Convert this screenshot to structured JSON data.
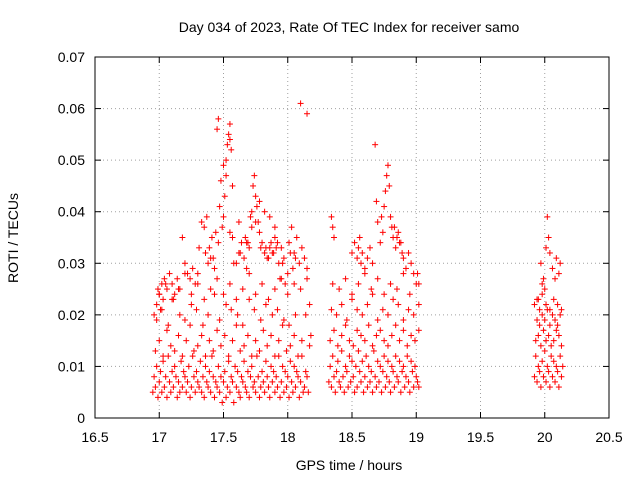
{
  "chart_data": {
    "type": "scatter",
    "title": "Day 034 of 2023, Rate Of TEC Index for receiver samo",
    "xlabel": "GPS time / hours",
    "ylabel": "ROTI / TECUs",
    "xlim": [
      16.5,
      20.5
    ],
    "ylim": [
      0,
      0.07
    ],
    "x_ticks": [
      "16.5",
      "17",
      "17.5",
      "18",
      "18.5",
      "19",
      "19.5",
      "20",
      "20.5"
    ],
    "y_ticks": [
      "0",
      "0.01",
      "0.02",
      "0.03",
      "0.04",
      "0.05",
      "0.06",
      "0.07"
    ],
    "grid": true,
    "marker": "+",
    "color": "#ff0000",
    "series": [
      {
        "x": [
          16.95,
          16.96,
          16.97,
          16.98,
          16.99,
          17.0,
          17.01,
          17.02,
          17.03,
          17.04,
          17.05,
          17.06,
          17.07,
          17.08,
          17.09,
          17.1,
          17.11,
          17.12,
          17.13,
          17.14,
          17.15,
          17.16,
          17.17,
          17.18,
          17.19,
          17.2,
          17.21,
          17.22,
          17.23,
          17.24,
          17.25,
          17.26,
          17.27,
          17.28,
          17.29,
          17.3,
          17.31,
          17.32,
          17.33,
          17.34,
          17.35,
          17.36,
          17.37,
          17.38,
          17.39,
          17.4,
          17.41,
          17.42,
          17.43,
          17.44,
          17.45,
          17.46,
          17.47,
          17.48,
          17.49,
          17.5,
          17.51,
          17.52,
          17.53,
          17.54,
          17.55,
          17.56,
          17.57,
          17.58,
          17.59,
          17.6,
          17.61,
          17.62,
          17.63,
          17.64,
          17.65,
          17.66,
          17.67,
          17.68,
          17.69,
          17.7,
          17.71,
          17.72,
          17.73,
          17.74,
          17.75,
          17.76,
          17.77,
          17.78,
          17.79,
          17.8,
          17.81,
          17.82,
          17.83,
          17.84,
          17.85,
          17.86,
          17.87,
          17.88,
          17.89,
          17.9,
          17.91,
          17.92,
          17.93,
          17.94,
          17.95,
          17.96,
          17.97,
          17.98,
          17.99,
          18.0,
          18.01,
          18.02,
          18.03,
          18.04,
          18.05,
          18.06,
          18.07,
          18.08,
          18.09,
          18.1,
          18.11,
          18.12,
          18.13,
          18.14,
          18.15,
          18.16,
          18.17,
          18.18,
          16.97,
          17.0,
          17.03,
          17.06,
          17.09,
          17.12,
          17.15,
          17.18,
          17.21,
          17.24,
          17.27,
          17.3,
          17.33,
          17.36,
          17.39,
          17.42,
          17.45,
          17.48,
          17.51,
          17.54,
          17.57,
          17.6,
          17.63,
          17.66,
          17.69,
          17.72,
          17.75,
          17.78,
          17.81,
          17.84,
          17.87,
          17.9,
          17.93,
          17.96,
          17.99,
          18.02,
          18.05,
          18.08,
          18.11,
          18.14,
          18.17,
          16.98,
          17.02,
          17.07,
          17.11,
          17.16,
          17.2,
          17.25,
          17.29,
          17.34,
          17.38,
          17.43,
          17.47,
          17.52,
          17.56,
          17.61,
          17.65,
          17.7,
          17.74,
          17.79,
          17.83,
          17.88,
          17.92,
          17.97,
          18.01,
          18.06,
          18.1,
          18.15,
          17.0,
          17.05,
          17.1,
          17.15,
          17.2,
          17.25,
          17.3,
          17.35,
          17.4,
          17.45,
          17.5,
          17.55,
          17.6,
          17.65,
          17.7,
          17.75,
          17.8,
          17.85,
          17.9,
          17.95,
          18.0,
          18.05,
          18.1,
          18.15,
          17.55,
          17.54,
          17.53,
          17.52,
          17.51,
          17.5,
          17.49,
          17.48,
          17.47,
          17.46,
          17.45,
          17.55,
          17.56,
          17.57,
          17.52,
          17.5,
          17.74,
          17.73,
          17.75,
          17.76,
          17.77,
          17.78,
          17.71,
          17.72,
          17.8,
          17.79,
          17.82,
          17.84,
          17.86,
          17.88,
          17.9,
          17.92,
          17.83,
          17.85,
          17.87,
          17.89,
          17.91,
          17.93,
          17.95,
          17.97,
          17.6,
          17.62,
          17.64,
          17.66,
          17.68,
          17.7,
          17.58,
          17.63,
          17.67,
          17.69,
          17.35,
          17.37,
          17.39,
          17.41,
          17.42,
          17.44,
          17.46,
          17.31,
          17.33,
          17.36,
          17.38,
          17.4,
          17.43,
          17.2,
          17.22,
          17.24,
          17.26,
          17.28,
          17.3,
          17.18,
          17.16,
          17.14,
          17.12,
          17.1,
          17.08,
          17.06,
          17.04,
          17.02,
          17.0,
          16.98,
          16.96,
          16.99,
          17.01,
          17.03,
          18.05,
          18.07,
          18.09,
          18.11,
          18.13,
          18.15,
          18.03,
          18.01,
          18.0,
          17.98,
          17.96,
          17.94,
          18.02,
          18.04,
          18.06,
          17.72,
          17.75,
          17.55,
          17.57,
          17.62,
          17.68,
          17.78,
          17.82,
          17.86,
          17.9
        ],
        "y": [
          0.005,
          0.008,
          0.006,
          0.01,
          0.004,
          0.007,
          0.009,
          0.005,
          0.011,
          0.006,
          0.008,
          0.004,
          0.012,
          0.007,
          0.005,
          0.009,
          0.006,
          0.01,
          0.008,
          0.004,
          0.007,
          0.005,
          0.011,
          0.006,
          0.009,
          0.008,
          0.005,
          0.007,
          0.01,
          0.004,
          0.006,
          0.012,
          0.008,
          0.005,
          0.009,
          0.007,
          0.006,
          0.011,
          0.005,
          0.008,
          0.004,
          0.01,
          0.007,
          0.006,
          0.009,
          0.005,
          0.012,
          0.008,
          0.004,
          0.007,
          0.006,
          0.01,
          0.005,
          0.008,
          0.003,
          0.007,
          0.009,
          0.004,
          0.006,
          0.011,
          0.005,
          0.008,
          0.007,
          0.003,
          0.01,
          0.006,
          0.009,
          0.005,
          0.004,
          0.008,
          0.007,
          0.011,
          0.006,
          0.005,
          0.009,
          0.004,
          0.008,
          0.01,
          0.006,
          0.007,
          0.005,
          0.012,
          0.008,
          0.004,
          0.006,
          0.009,
          0.007,
          0.005,
          0.011,
          0.008,
          0.006,
          0.004,
          0.01,
          0.007,
          0.009,
          0.005,
          0.008,
          0.006,
          0.012,
          0.004,
          0.007,
          0.01,
          0.005,
          0.009,
          0.006,
          0.008,
          0.004,
          0.011,
          0.007,
          0.005,
          0.01,
          0.006,
          0.009,
          0.008,
          0.004,
          0.007,
          0.012,
          0.005,
          0.006,
          0.009,
          0.008,
          0.005,
          0.014,
          0.016,
          0.013,
          0.015,
          0.012,
          0.017,
          0.014,
          0.013,
          0.016,
          0.012,
          0.015,
          0.018,
          0.013,
          0.014,
          0.016,
          0.012,
          0.015,
          0.013,
          0.017,
          0.014,
          0.016,
          0.012,
          0.015,
          0.018,
          0.013,
          0.014,
          0.016,
          0.012,
          0.015,
          0.013,
          0.017,
          0.014,
          0.016,
          0.012,
          0.015,
          0.018,
          0.013,
          0.014,
          0.016,
          0.012,
          0.015,
          0.02,
          0.022,
          0.019,
          0.021,
          0.018,
          0.023,
          0.02,
          0.019,
          0.022,
          0.021,
          0.018,
          0.02,
          0.024,
          0.019,
          0.022,
          0.021,
          0.02,
          0.018,
          0.023,
          0.021,
          0.019,
          0.022,
          0.02,
          0.021,
          0.019,
          0.018,
          0.02,
          0.025,
          0.027,
          0.024,
          0.026,
          0.023,
          0.025,
          0.028,
          0.024,
          0.026,
          0.023,
          0.025,
          0.027,
          0.024,
          0.026,
          0.023,
          0.025,
          0.028,
          0.024,
          0.026,
          0.023,
          0.025,
          0.027,
          0.024,
          0.026,
          0.061,
          0.059,
          0.057,
          0.055,
          0.053,
          0.047,
          0.043,
          0.039,
          0.037,
          0.046,
          0.041,
          0.058,
          0.056,
          0.054,
          0.052,
          0.045,
          0.05,
          0.049,
          0.047,
          0.045,
          0.043,
          0.041,
          0.038,
          0.036,
          0.039,
          0.037,
          0.034,
          0.033,
          0.032,
          0.031,
          0.033,
          0.032,
          0.035,
          0.034,
          0.033,
          0.031,
          0.034,
          0.032,
          0.033,
          0.03,
          0.033,
          0.031,
          0.03,
          0.032,
          0.034,
          0.031,
          0.029,
          0.033,
          0.03,
          0.032,
          0.035,
          0.034,
          0.037,
          0.039,
          0.033,
          0.035,
          0.031,
          0.036,
          0.034,
          0.033,
          0.038,
          0.032,
          0.03,
          0.031,
          0.029,
          0.03,
          0.028,
          0.027,
          0.029,
          0.026,
          0.028,
          0.035,
          0.025,
          0.027,
          0.024,
          0.026,
          0.028,
          0.025,
          0.027,
          0.026,
          0.024,
          0.022,
          0.02,
          0.025,
          0.021,
          0.023,
          0.032,
          0.035,
          0.03,
          0.033,
          0.031,
          0.029,
          0.037,
          0.034,
          0.028,
          0.026,
          0.03,
          0.027,
          0.032,
          0.029,
          0.031,
          0.04,
          0.038,
          0.036,
          0.035,
          0.038,
          0.034,
          0.042,
          0.04,
          0.039,
          0.037
        ]
      },
      {
        "x": [
          18.32,
          18.33,
          18.34,
          18.35,
          18.36,
          18.37,
          18.38,
          18.39,
          18.4,
          18.41,
          18.42,
          18.43,
          18.44,
          18.45,
          18.46,
          18.47,
          18.48,
          18.49,
          18.5,
          18.51,
          18.52,
          18.53,
          18.54,
          18.55,
          18.56,
          18.57,
          18.58,
          18.59,
          18.6,
          18.61,
          18.62,
          18.63,
          18.64,
          18.65,
          18.66,
          18.67,
          18.68,
          18.69,
          18.7,
          18.71,
          18.72,
          18.73,
          18.74,
          18.75,
          18.76,
          18.77,
          18.78,
          18.79,
          18.8,
          18.81,
          18.82,
          18.83,
          18.84,
          18.85,
          18.86,
          18.87,
          18.88,
          18.89,
          18.9,
          18.91,
          18.92,
          18.93,
          18.94,
          18.95,
          18.96,
          18.97,
          18.98,
          18.99,
          19.0,
          19.01,
          19.02,
          18.33,
          18.36,
          18.39,
          18.42,
          18.45,
          18.48,
          18.51,
          18.54,
          18.57,
          18.6,
          18.63,
          18.66,
          18.69,
          18.72,
          18.75,
          18.78,
          18.81,
          18.84,
          18.87,
          18.9,
          18.93,
          18.96,
          18.99,
          19.02,
          18.34,
          18.38,
          18.42,
          18.46,
          18.5,
          18.54,
          18.58,
          18.62,
          18.66,
          18.7,
          18.74,
          18.78,
          18.82,
          18.86,
          18.9,
          18.94,
          18.98,
          19.02,
          18.35,
          18.4,
          18.45,
          18.5,
          18.55,
          18.6,
          18.65,
          18.7,
          18.75,
          18.8,
          18.85,
          18.9,
          18.95,
          19.0,
          18.68,
          18.69,
          18.7,
          18.72,
          18.74,
          18.76,
          18.77,
          18.78,
          18.79,
          18.8,
          18.81,
          18.82,
          18.84,
          18.86,
          18.88,
          18.9,
          18.92,
          18.94,
          18.96,
          18.98,
          18.34,
          18.35,
          18.36,
          18.5,
          18.52,
          18.54,
          18.55,
          18.56,
          18.57,
          18.58,
          18.6,
          18.62,
          18.64,
          18.66,
          19.01,
          19.02,
          18.75,
          18.73,
          18.83,
          18.85,
          18.87,
          18.89
        ],
        "y": [
          0.007,
          0.01,
          0.006,
          0.012,
          0.008,
          0.005,
          0.009,
          0.011,
          0.007,
          0.006,
          0.013,
          0.008,
          0.005,
          0.01,
          0.009,
          0.006,
          0.012,
          0.007,
          0.011,
          0.008,
          0.005,
          0.01,
          0.006,
          0.013,
          0.009,
          0.007,
          0.011,
          0.005,
          0.008,
          0.012,
          0.006,
          0.01,
          0.007,
          0.009,
          0.005,
          0.013,
          0.008,
          0.006,
          0.011,
          0.007,
          0.01,
          0.005,
          0.009,
          0.012,
          0.006,
          0.008,
          0.011,
          0.007,
          0.005,
          0.01,
          0.009,
          0.006,
          0.012,
          0.008,
          0.007,
          0.011,
          0.005,
          0.009,
          0.01,
          0.006,
          0.008,
          0.012,
          0.007,
          0.005,
          0.011,
          0.009,
          0.006,
          0.01,
          0.008,
          0.007,
          0.006,
          0.015,
          0.017,
          0.014,
          0.016,
          0.018,
          0.015,
          0.014,
          0.017,
          0.016,
          0.015,
          0.018,
          0.014,
          0.016,
          0.017,
          0.015,
          0.014,
          0.016,
          0.018,
          0.015,
          0.017,
          0.014,
          0.016,
          0.015,
          0.017,
          0.021,
          0.02,
          0.022,
          0.019,
          0.023,
          0.021,
          0.02,
          0.022,
          0.024,
          0.019,
          0.021,
          0.02,
          0.023,
          0.022,
          0.019,
          0.021,
          0.02,
          0.022,
          0.026,
          0.025,
          0.027,
          0.024,
          0.026,
          0.028,
          0.025,
          0.027,
          0.024,
          0.026,
          0.025,
          0.028,
          0.024,
          0.026,
          0.053,
          0.042,
          0.038,
          0.034,
          0.036,
          0.044,
          0.047,
          0.049,
          0.045,
          0.039,
          0.037,
          0.035,
          0.033,
          0.036,
          0.034,
          0.031,
          0.029,
          0.032,
          0.03,
          0.028,
          0.039,
          0.037,
          0.035,
          0.032,
          0.034,
          0.031,
          0.033,
          0.035,
          0.03,
          0.032,
          0.029,
          0.031,
          0.033,
          0.03,
          0.028,
          0.026,
          0.041,
          0.039,
          0.037,
          0.035,
          0.034,
          0.032
        ]
      },
      {
        "x": [
          19.92,
          19.93,
          19.94,
          19.95,
          19.96,
          19.97,
          19.98,
          19.99,
          20.0,
          20.01,
          20.02,
          20.03,
          20.04,
          20.05,
          20.06,
          20.07,
          20.08,
          20.09,
          20.1,
          20.11,
          20.12,
          20.13,
          20.14,
          19.93,
          19.95,
          19.97,
          19.99,
          20.01,
          20.03,
          20.05,
          20.07,
          20.09,
          20.11,
          20.13,
          19.94,
          19.96,
          19.98,
          20.0,
          20.02,
          20.04,
          20.06,
          20.08,
          20.1,
          20.12,
          19.92,
          19.95,
          19.98,
          20.01,
          20.04,
          20.07,
          20.1,
          20.13,
          19.97,
          19.99,
          20.0,
          20.01,
          20.02,
          20.03,
          20.04,
          19.98,
          20.06,
          20.08,
          20.09,
          20.11,
          20.12,
          19.94,
          19.96
        ],
        "y": [
          0.008,
          0.012,
          0.007,
          0.01,
          0.009,
          0.006,
          0.011,
          0.008,
          0.013,
          0.007,
          0.01,
          0.009,
          0.006,
          0.012,
          0.008,
          0.011,
          0.007,
          0.01,
          0.009,
          0.006,
          0.012,
          0.008,
          0.01,
          0.015,
          0.016,
          0.014,
          0.017,
          0.015,
          0.016,
          0.014,
          0.015,
          0.017,
          0.016,
          0.014,
          0.019,
          0.018,
          0.02,
          0.019,
          0.021,
          0.018,
          0.02,
          0.019,
          0.018,
          0.02,
          0.022,
          0.023,
          0.024,
          0.022,
          0.021,
          0.023,
          0.022,
          0.021,
          0.03,
          0.027,
          0.025,
          0.033,
          0.039,
          0.035,
          0.032,
          0.026,
          0.029,
          0.027,
          0.031,
          0.028,
          0.03,
          0.023,
          0.021
        ]
      }
    ]
  }
}
